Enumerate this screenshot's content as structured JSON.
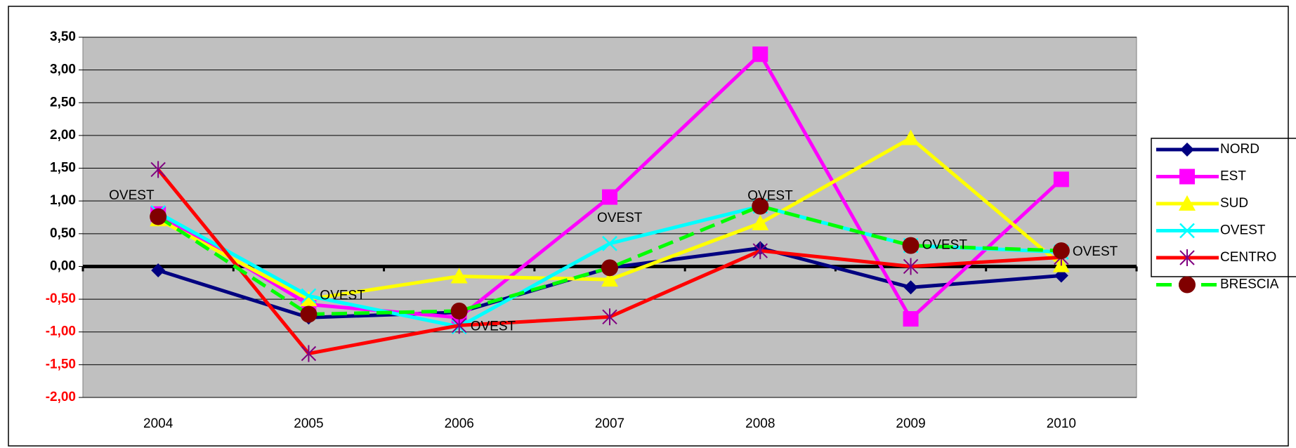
{
  "chart_data": {
    "type": "line",
    "categories": [
      "2004",
      "2005",
      "2006",
      "2007",
      "2008",
      "2009",
      "2010"
    ],
    "series": [
      {
        "name": "NORD",
        "color": "#000080",
        "marker": "diamond",
        "marker_color": "#000080",
        "values": [
          -0.06,
          -0.78,
          -0.7,
          -0.02,
          0.28,
          -0.32,
          -0.14
        ]
      },
      {
        "name": "EST",
        "color": "#ff00ff",
        "marker": "square",
        "marker_color": "#ff00ff",
        "values": [
          0.8,
          -0.58,
          -0.78,
          1.06,
          3.24,
          -0.8,
          1.33
        ]
      },
      {
        "name": "SUD",
        "color": "#ffff00",
        "marker": "triangle",
        "marker_color": "#ffff00",
        "values": [
          0.72,
          -0.5,
          -0.15,
          -0.2,
          0.66,
          1.96,
          0.02
        ]
      },
      {
        "name": "OVEST",
        "color": "#00ffff",
        "marker": "x",
        "marker_color": "#00ffff",
        "values": [
          0.82,
          -0.45,
          -0.92,
          0.35,
          0.92,
          0.32,
          0.22
        ],
        "data_labels": true
      },
      {
        "name": "CENTRO",
        "color": "#ff0000",
        "marker": "star",
        "marker_color": "#800080",
        "values": [
          1.48,
          -1.33,
          -0.9,
          -0.77,
          0.24,
          0.0,
          0.14
        ]
      },
      {
        "name": "BRESCIA",
        "color": "#00ff00",
        "dashed": true,
        "marker": "circle",
        "marker_color": "#800000",
        "values": [
          0.76,
          -0.73,
          -0.68,
          -0.02,
          0.92,
          0.32,
          0.24
        ]
      }
    ],
    "ylim": [
      -2,
      3.5
    ],
    "yticks": [
      {
        "value": -2,
        "label": "-2,00"
      },
      {
        "value": -1.5,
        "label": "-1,50"
      },
      {
        "value": -1,
        "label": "-1,00"
      },
      {
        "value": -0.5,
        "label": "-0,50"
      },
      {
        "value": 0,
        "label": "0,00"
      },
      {
        "value": 0.5,
        "label": "0,50"
      },
      {
        "value": 1,
        "label": "1,00"
      },
      {
        "value": 1.5,
        "label": "1,50"
      },
      {
        "value": 2,
        "label": "2,00"
      },
      {
        "value": 2.5,
        "label": "2,50"
      },
      {
        "value": 3,
        "label": "3,00"
      },
      {
        "value": 3.5,
        "label": "3,50"
      }
    ],
    "grid": true,
    "plot_background": "#c0c0c0",
    "legend": "right"
  }
}
